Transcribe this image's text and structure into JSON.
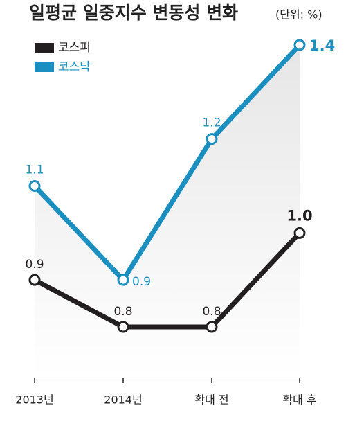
{
  "chart_data": {
    "type": "line",
    "title": "일평균 일중지수 변동성 변화",
    "subtitle": "(단위: %)",
    "categories": [
      "2013년",
      "2014년",
      "확대 전",
      "확대 후"
    ],
    "series": [
      {
        "name": "코스피",
        "color": "#231f20",
        "values": [
          0.9,
          0.8,
          0.8,
          1.0
        ],
        "value_labels": [
          "0.9",
          "0.8",
          "0.8",
          "1.0"
        ]
      },
      {
        "name": "코스닥",
        "color": "#1a8fc0",
        "values": [
          1.1,
          0.9,
          1.2,
          1.4
        ]
      }
    ]
  }
}
